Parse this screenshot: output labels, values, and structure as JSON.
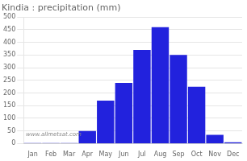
{
  "chart_data": {
    "type": "bar",
    "title": "Kindia : precipitation (mm)",
    "categories": [
      "Jan",
      "Feb",
      "Mar",
      "Apr",
      "May",
      "Jun",
      "Jul",
      "Aug",
      "Sep",
      "Oct",
      "Nov",
      "Dec"
    ],
    "values": [
      2,
      2,
      2,
      50,
      170,
      240,
      370,
      460,
      350,
      225,
      35,
      5
    ],
    "color": "#2222dd",
    "ylim": [
      0,
      500
    ],
    "yticks": [
      0,
      50,
      100,
      150,
      200,
      250,
      300,
      350,
      400,
      450,
      500
    ],
    "grid": true,
    "annotations": [
      "www.allmetsat.com"
    ]
  }
}
